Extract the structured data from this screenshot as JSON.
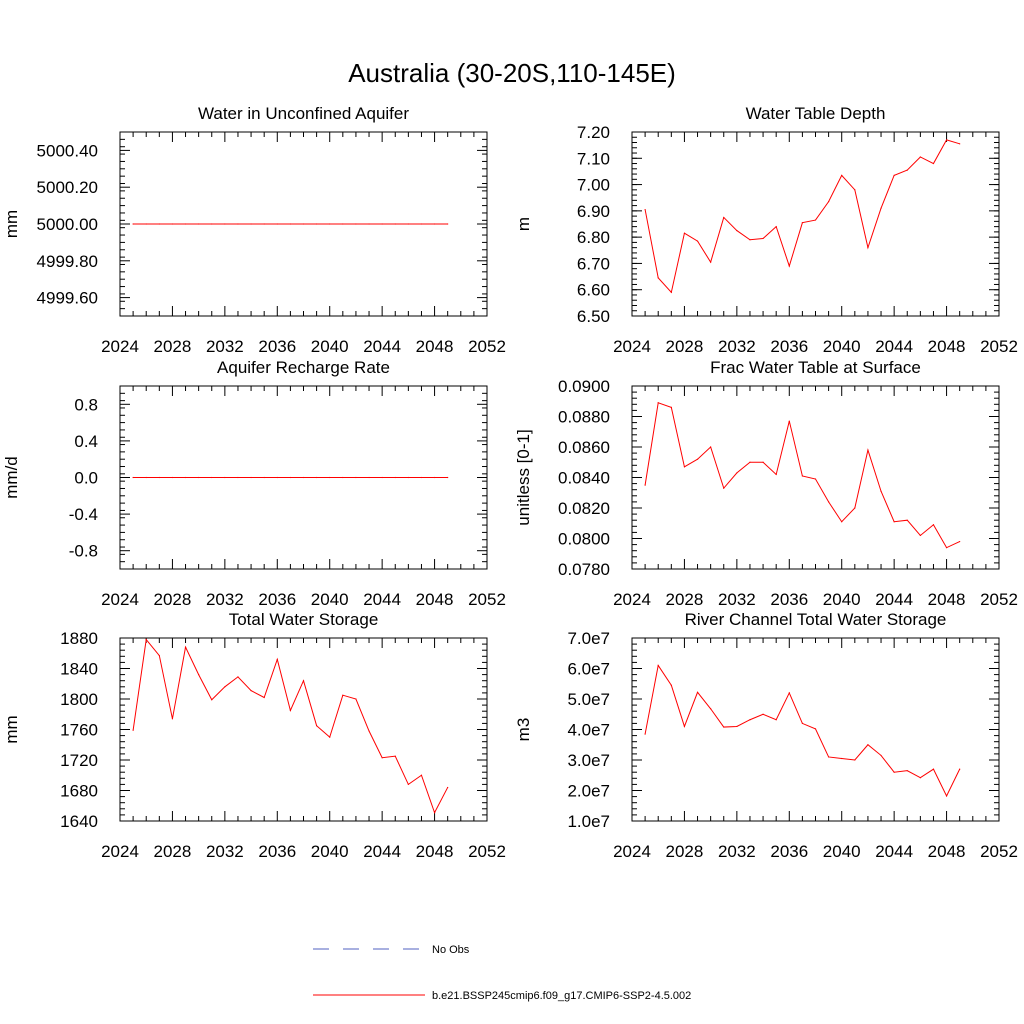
{
  "figure": {
    "title": "Australia (30-20S,110-145E)"
  },
  "legend": {
    "items": [
      {
        "label": "No Obs",
        "color": "#5060c0",
        "style": "dashed"
      },
      {
        "label": "b.e21.BSSP245cmip6.f09_g17.CMIP6-SSP2-4.5.002",
        "color": "#ff0000",
        "style": "solid"
      }
    ]
  },
  "chart_data": [
    {
      "type": "line",
      "title": "Water in Unconfined Aquifer",
      "xlabel": "",
      "ylabel": "mm",
      "xlim": [
        2024,
        2052
      ],
      "ylim": [
        4999.5,
        5000.5
      ],
      "xticks": [
        2024,
        2028,
        2032,
        2036,
        2040,
        2044,
        2048,
        2052
      ],
      "xtick_labels": [
        "2024",
        "2028",
        "2032",
        "2036",
        "2040",
        "2044",
        "2048",
        "2052"
      ],
      "yticks": [
        4999.6,
        4999.8,
        5000.0,
        5000.2,
        5000.4
      ],
      "ytick_labels": [
        "4999.60",
        "4999.80",
        "5000.00",
        "5000.20",
        "5000.40"
      ],
      "series": [
        {
          "color": "#ff0000",
          "x": [
            2025,
            2026,
            2027,
            2028,
            2029,
            2030,
            2031,
            2032,
            2033,
            2034,
            2035,
            2036,
            2037,
            2038,
            2039,
            2040,
            2041,
            2042,
            2043,
            2044,
            2045,
            2046,
            2047,
            2048,
            2049
          ],
          "y": [
            5000,
            5000,
            5000,
            5000,
            5000,
            5000,
            5000,
            5000,
            5000,
            5000,
            5000,
            5000,
            5000,
            5000,
            5000,
            5000,
            5000,
            5000,
            5000,
            5000,
            5000,
            5000,
            5000,
            5000,
            5000
          ]
        }
      ]
    },
    {
      "type": "line",
      "title": "Water Table Depth",
      "xlabel": "",
      "ylabel": "m",
      "xlim": [
        2024,
        2052
      ],
      "ylim": [
        6.5,
        7.2
      ],
      "xticks": [
        2024,
        2028,
        2032,
        2036,
        2040,
        2044,
        2048,
        2052
      ],
      "xtick_labels": [
        "2024",
        "2028",
        "2032",
        "2036",
        "2040",
        "2044",
        "2048",
        "2052"
      ],
      "yticks": [
        6.5,
        6.6,
        6.7,
        6.8,
        6.9,
        7.0,
        7.1,
        7.2
      ],
      "ytick_labels": [
        "6.50",
        "6.60",
        "6.70",
        "6.80",
        "6.90",
        "7.00",
        "7.10",
        "7.20"
      ],
      "series": [
        {
          "color": "#ff0000",
          "x": [
            2025,
            2026,
            2027,
            2028,
            2029,
            2030,
            2031,
            2032,
            2033,
            2034,
            2035,
            2036,
            2037,
            2038,
            2039,
            2040,
            2041,
            2042,
            2043,
            2044,
            2045,
            2046,
            2047,
            2048,
            2049
          ],
          "y": [
            6.905,
            6.645,
            6.59,
            6.815,
            6.785,
            6.705,
            6.875,
            6.825,
            6.79,
            6.795,
            6.84,
            6.69,
            6.855,
            6.865,
            6.935,
            7.035,
            6.98,
            6.76,
            6.91,
            7.035,
            7.055,
            7.105,
            7.08,
            7.17,
            7.155
          ]
        }
      ]
    },
    {
      "type": "line",
      "title": "Aquifer Recharge Rate",
      "xlabel": "",
      "ylabel": "mm/d",
      "xlim": [
        2024,
        2052
      ],
      "ylim": [
        -1.0,
        1.0
      ],
      "xticks": [
        2024,
        2028,
        2032,
        2036,
        2040,
        2044,
        2048,
        2052
      ],
      "xtick_labels": [
        "2024",
        "2028",
        "2032",
        "2036",
        "2040",
        "2044",
        "2048",
        "2052"
      ],
      "yticks": [
        -0.8,
        -0.4,
        0.0,
        0.4,
        0.8
      ],
      "ytick_labels": [
        "-0.8",
        "-0.4",
        "0.0",
        "0.4",
        "0.8"
      ],
      "series": [
        {
          "color": "#ff0000",
          "x": [
            2025,
            2026,
            2027,
            2028,
            2029,
            2030,
            2031,
            2032,
            2033,
            2034,
            2035,
            2036,
            2037,
            2038,
            2039,
            2040,
            2041,
            2042,
            2043,
            2044,
            2045,
            2046,
            2047,
            2048,
            2049
          ],
          "y": [
            0,
            0,
            0,
            0,
            0,
            0,
            0,
            0,
            0,
            0,
            0,
            0,
            0,
            0,
            0,
            0,
            0,
            0,
            0,
            0,
            0,
            0,
            0,
            0,
            0
          ]
        }
      ]
    },
    {
      "type": "line",
      "title": "Frac Water Table at Surface",
      "xlabel": "",
      "ylabel": "unitless [0-1]",
      "xlim": [
        2024,
        2052
      ],
      "ylim": [
        0.078,
        0.09
      ],
      "xticks": [
        2024,
        2028,
        2032,
        2036,
        2040,
        2044,
        2048,
        2052
      ],
      "xtick_labels": [
        "2024",
        "2028",
        "2032",
        "2036",
        "2040",
        "2044",
        "2048",
        "2052"
      ],
      "yticks": [
        0.078,
        0.08,
        0.082,
        0.084,
        0.086,
        0.088,
        0.09
      ],
      "ytick_labels": [
        "0.0780",
        "0.0800",
        "0.0820",
        "0.0840",
        "0.0860",
        "0.0880",
        "0.0900"
      ],
      "series": [
        {
          "color": "#ff0000",
          "x": [
            2025,
            2026,
            2027,
            2028,
            2029,
            2030,
            2031,
            2032,
            2033,
            2034,
            2035,
            2036,
            2037,
            2038,
            2039,
            2040,
            2041,
            2042,
            2043,
            2044,
            2045,
            2046,
            2047,
            2048,
            2049
          ],
          "y": [
            0.0835,
            0.0889,
            0.0886,
            0.0847,
            0.0852,
            0.086,
            0.0833,
            0.0843,
            0.085,
            0.085,
            0.0842,
            0.0877,
            0.0841,
            0.0839,
            0.0824,
            0.0811,
            0.082,
            0.0858,
            0.0831,
            0.0811,
            0.0812,
            0.0802,
            0.0809,
            0.0794,
            0.0798
          ]
        }
      ]
    },
    {
      "type": "line",
      "title": "Total Water Storage",
      "xlabel": "",
      "ylabel": "mm",
      "xlim": [
        2024,
        2052
      ],
      "ylim": [
        1640,
        1880
      ],
      "xticks": [
        2024,
        2028,
        2032,
        2036,
        2040,
        2044,
        2048,
        2052
      ],
      "xtick_labels": [
        "2024",
        "2028",
        "2032",
        "2036",
        "2040",
        "2044",
        "2048",
        "2052"
      ],
      "yticks": [
        1640,
        1680,
        1720,
        1760,
        1800,
        1840,
        1880
      ],
      "ytick_labels": [
        "1640",
        "1680",
        "1720",
        "1760",
        "1800",
        "1840",
        "1880"
      ],
      "series": [
        {
          "color": "#ff0000",
          "x": [
            2025,
            2026,
            2027,
            2028,
            2029,
            2030,
            2031,
            2032,
            2033,
            2034,
            2035,
            2036,
            2037,
            2038,
            2039,
            2040,
            2041,
            2042,
            2043,
            2044,
            2045,
            2046,
            2047,
            2048,
            2049
          ],
          "y": [
            1759,
            1878,
            1857,
            1774,
            1868,
            1832,
            1799,
            1816,
            1829,
            1811,
            1802,
            1852,
            1785,
            1824,
            1765,
            1750,
            1805,
            1800,
            1758,
            1723,
            1725,
            1688,
            1700,
            1651,
            1684
          ]
        }
      ]
    },
    {
      "type": "line",
      "title": "River Channel Total Water Storage",
      "xlabel": "",
      "ylabel": "m3",
      "xlim": [
        2024,
        2052
      ],
      "ylim": [
        10000000,
        70000000
      ],
      "xticks": [
        2024,
        2028,
        2032,
        2036,
        2040,
        2044,
        2048,
        2052
      ],
      "xtick_labels": [
        "2024",
        "2028",
        "2032",
        "2036",
        "2040",
        "2044",
        "2048",
        "2052"
      ],
      "yticks": [
        10000000,
        20000000,
        30000000,
        40000000,
        50000000,
        60000000,
        70000000
      ],
      "ytick_labels": [
        "1.0e7",
        "2.0e7",
        "3.0e7",
        "4.0e7",
        "5.0e7",
        "6.0e7",
        "7.0e7"
      ],
      "series": [
        {
          "color": "#ff0000",
          "x": [
            2025,
            2026,
            2027,
            2028,
            2029,
            2030,
            2031,
            2032,
            2033,
            2034,
            2035,
            2036,
            2037,
            2038,
            2039,
            2040,
            2041,
            2042,
            2043,
            2044,
            2045,
            2046,
            2047,
            2048,
            2049
          ],
          "y": [
            38500000,
            61000000,
            54500000,
            41000000,
            52200000,
            46800000,
            40800000,
            41000000,
            43200000,
            45000000,
            43200000,
            52000000,
            42000000,
            40200000,
            31000000,
            30500000,
            30000000,
            35000000,
            31500000,
            26000000,
            26500000,
            24200000,
            27000000,
            18200000,
            27000000
          ]
        }
      ]
    }
  ]
}
